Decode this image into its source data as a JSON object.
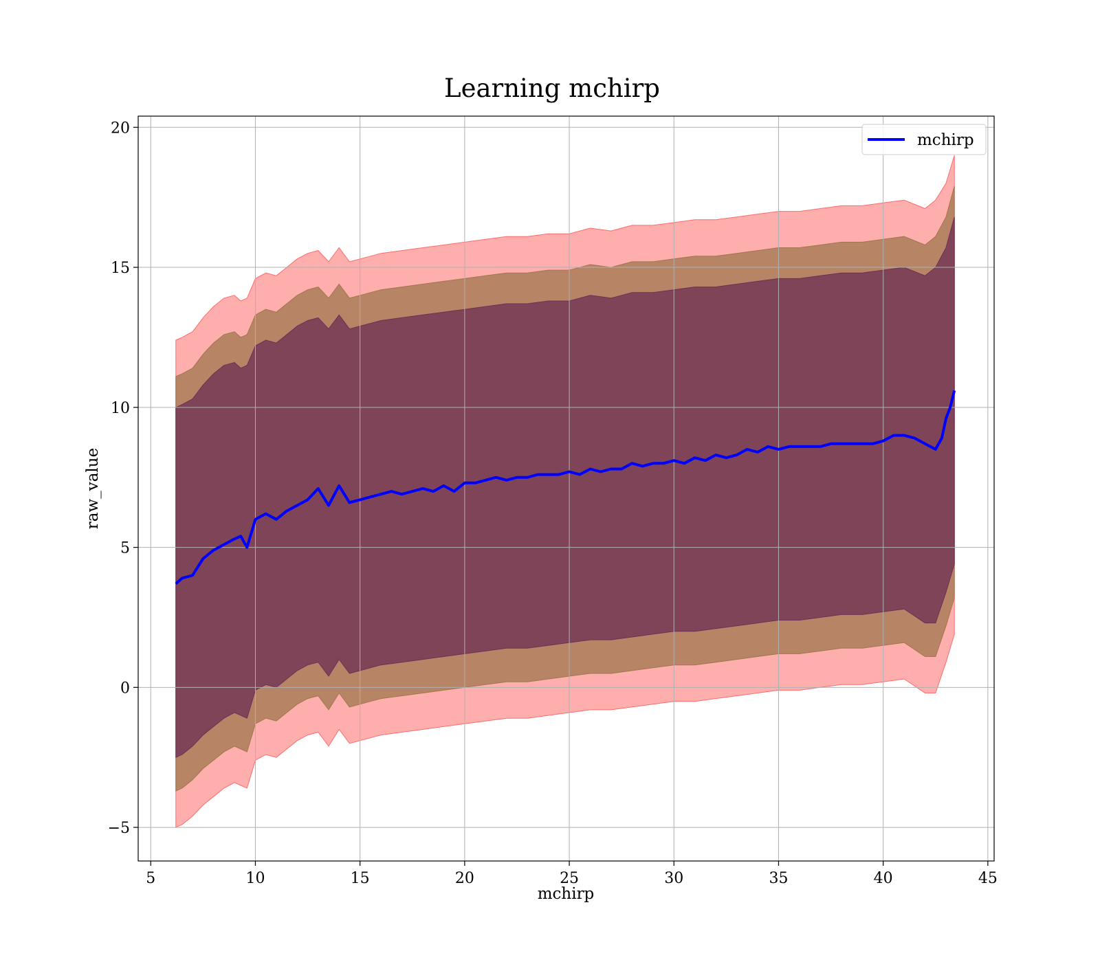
{
  "chart_data": {
    "type": "line",
    "title": "Learning mchirp",
    "xlabel": "mchirp",
    "ylabel": "raw_value",
    "xlim": [
      4.4,
      45.3
    ],
    "ylim": [
      -6.2,
      20.4
    ],
    "xticks": [
      5,
      10,
      15,
      20,
      25,
      30,
      35,
      40,
      45
    ],
    "xtick_labels": [
      "5",
      "10",
      "15",
      "20",
      "25",
      "30",
      "35",
      "40",
      "45"
    ],
    "yticks": [
      -5,
      0,
      5,
      10,
      15,
      20
    ],
    "ytick_labels": [
      "−5",
      "0",
      "5",
      "10",
      "15",
      "20"
    ],
    "grid": true,
    "legend": {
      "position": "top-right",
      "entries": [
        "mchirp"
      ]
    },
    "colors": {
      "line": "#0000ff",
      "band_outer": "#ff6b6b",
      "band_middle": "#a0764d",
      "band_inner": "#6e2f55",
      "grid": "#b0b0b0"
    },
    "series": [
      {
        "name": "mchirp",
        "x": [
          6.2,
          6.5,
          7.0,
          7.5,
          8.0,
          8.5,
          9.0,
          9.3,
          9.6,
          10.0,
          10.5,
          11.0,
          11.5,
          12.0,
          12.5,
          13.0,
          13.5,
          14.0,
          14.5,
          15.0,
          15.5,
          16.0,
          16.5,
          17.0,
          17.5,
          18.0,
          18.5,
          19.0,
          19.5,
          20.0,
          20.5,
          21.0,
          21.5,
          22.0,
          22.5,
          23.0,
          23.5,
          24.0,
          24.5,
          25.0,
          25.5,
          26.0,
          26.5,
          27.0,
          27.5,
          28.0,
          28.5,
          29.0,
          29.5,
          30.0,
          30.5,
          31.0,
          31.5,
          32.0,
          32.5,
          33.0,
          33.5,
          34.0,
          34.5,
          35.0,
          35.5,
          36.0,
          36.5,
          37.0,
          37.5,
          38.0,
          38.5,
          39.0,
          39.5,
          40.0,
          40.5,
          41.0,
          41.5,
          42.0,
          42.5,
          42.8,
          43.0,
          43.2,
          43.4
        ],
        "y": [
          3.7,
          3.9,
          4.0,
          4.6,
          4.9,
          5.1,
          5.3,
          5.4,
          5.0,
          6.0,
          6.2,
          6.0,
          6.3,
          6.5,
          6.7,
          7.1,
          6.5,
          7.2,
          6.6,
          6.7,
          6.8,
          6.9,
          7.0,
          6.9,
          7.0,
          7.1,
          7.0,
          7.2,
          7.0,
          7.3,
          7.3,
          7.4,
          7.5,
          7.4,
          7.5,
          7.5,
          7.6,
          7.6,
          7.6,
          7.7,
          7.6,
          7.8,
          7.7,
          7.8,
          7.8,
          8.0,
          7.9,
          8.0,
          8.0,
          8.1,
          8.0,
          8.2,
          8.1,
          8.3,
          8.2,
          8.3,
          8.5,
          8.4,
          8.6,
          8.5,
          8.6,
          8.6,
          8.6,
          8.6,
          8.7,
          8.7,
          8.7,
          8.7,
          8.7,
          8.8,
          9.0,
          9.0,
          8.9,
          8.7,
          8.5,
          8.9,
          9.6,
          10.0,
          10.6
        ]
      }
    ],
    "bands": [
      {
        "label": "outer",
        "x": [
          6.2,
          6.5,
          7.0,
          7.5,
          8.0,
          8.5,
          9.0,
          9.3,
          9.6,
          10.0,
          10.5,
          11.0,
          11.5,
          12.0,
          12.5,
          13.0,
          13.5,
          14.0,
          14.5,
          15.0,
          15.5,
          16.0,
          17.0,
          18.0,
          19.0,
          20.0,
          21.0,
          22.0,
          23.0,
          24.0,
          25.0,
          26.0,
          27.0,
          28.0,
          29.0,
          30.0,
          31.0,
          32.0,
          33.0,
          34.0,
          35.0,
          36.0,
          37.0,
          38.0,
          39.0,
          40.0,
          41.0,
          42.0,
          42.5,
          43.0,
          43.4
        ],
        "upper": [
          12.4,
          12.5,
          12.7,
          13.2,
          13.6,
          13.9,
          14.0,
          13.8,
          13.9,
          14.6,
          14.8,
          14.7,
          15.0,
          15.3,
          15.5,
          15.6,
          15.2,
          15.7,
          15.2,
          15.3,
          15.4,
          15.5,
          15.6,
          15.7,
          15.8,
          15.9,
          16.0,
          16.1,
          16.1,
          16.2,
          16.2,
          16.4,
          16.3,
          16.5,
          16.5,
          16.6,
          16.7,
          16.7,
          16.8,
          16.9,
          17.0,
          17.0,
          17.1,
          17.2,
          17.2,
          17.3,
          17.4,
          17.1,
          17.4,
          18.0,
          19.0
        ],
        "lower": [
          -5.0,
          -4.9,
          -4.6,
          -4.2,
          -3.9,
          -3.6,
          -3.4,
          -3.5,
          -3.6,
          -2.6,
          -2.4,
          -2.5,
          -2.2,
          -1.9,
          -1.7,
          -1.6,
          -2.1,
          -1.5,
          -2.0,
          -1.9,
          -1.8,
          -1.7,
          -1.6,
          -1.5,
          -1.4,
          -1.3,
          -1.2,
          -1.1,
          -1.1,
          -1.0,
          -0.9,
          -0.8,
          -0.8,
          -0.7,
          -0.6,
          -0.5,
          -0.5,
          -0.4,
          -0.3,
          -0.2,
          -0.1,
          -0.1,
          0.0,
          0.1,
          0.1,
          0.2,
          0.3,
          -0.2,
          -0.2,
          0.9,
          1.9
        ]
      },
      {
        "label": "middle",
        "x": [
          6.2,
          6.5,
          7.0,
          7.5,
          8.0,
          8.5,
          9.0,
          9.3,
          9.6,
          10.0,
          10.5,
          11.0,
          11.5,
          12.0,
          12.5,
          13.0,
          13.5,
          14.0,
          14.5,
          15.0,
          15.5,
          16.0,
          17.0,
          18.0,
          19.0,
          20.0,
          21.0,
          22.0,
          23.0,
          24.0,
          25.0,
          26.0,
          27.0,
          28.0,
          29.0,
          30.0,
          31.0,
          32.0,
          33.0,
          34.0,
          35.0,
          36.0,
          37.0,
          38.0,
          39.0,
          40.0,
          41.0,
          42.0,
          42.5,
          43.0,
          43.4
        ],
        "upper": [
          11.1,
          11.2,
          11.4,
          11.9,
          12.3,
          12.6,
          12.7,
          12.5,
          12.6,
          13.3,
          13.5,
          13.4,
          13.7,
          14.0,
          14.2,
          14.3,
          13.9,
          14.4,
          13.9,
          14.0,
          14.1,
          14.2,
          14.3,
          14.4,
          14.5,
          14.6,
          14.7,
          14.8,
          14.8,
          14.9,
          14.9,
          15.1,
          15.0,
          15.2,
          15.2,
          15.3,
          15.4,
          15.4,
          15.5,
          15.6,
          15.7,
          15.7,
          15.8,
          15.9,
          15.9,
          16.0,
          16.1,
          15.8,
          16.1,
          16.8,
          17.9
        ],
        "lower": [
          -3.7,
          -3.6,
          -3.3,
          -2.9,
          -2.6,
          -2.3,
          -2.1,
          -2.2,
          -2.3,
          -1.3,
          -1.1,
          -1.2,
          -0.9,
          -0.6,
          -0.4,
          -0.3,
          -0.8,
          -0.2,
          -0.7,
          -0.6,
          -0.5,
          -0.4,
          -0.3,
          -0.2,
          -0.1,
          0.0,
          0.1,
          0.2,
          0.2,
          0.3,
          0.4,
          0.5,
          0.5,
          0.6,
          0.7,
          0.8,
          0.8,
          0.9,
          1.0,
          1.1,
          1.2,
          1.2,
          1.3,
          1.4,
          1.4,
          1.5,
          1.6,
          1.1,
          1.1,
          2.2,
          3.2
        ]
      },
      {
        "label": "inner",
        "x": [
          6.2,
          6.5,
          7.0,
          7.5,
          8.0,
          8.5,
          9.0,
          9.3,
          9.6,
          10.0,
          10.5,
          11.0,
          11.5,
          12.0,
          12.5,
          13.0,
          13.5,
          14.0,
          14.5,
          15.0,
          15.5,
          16.0,
          17.0,
          18.0,
          19.0,
          20.0,
          21.0,
          22.0,
          23.0,
          24.0,
          25.0,
          26.0,
          27.0,
          28.0,
          29.0,
          30.0,
          31.0,
          32.0,
          33.0,
          34.0,
          35.0,
          36.0,
          37.0,
          38.0,
          39.0,
          40.0,
          41.0,
          42.0,
          42.5,
          43.0,
          43.4
        ],
        "upper": [
          10.0,
          10.1,
          10.3,
          10.8,
          11.2,
          11.5,
          11.6,
          11.4,
          11.5,
          12.2,
          12.4,
          12.3,
          12.6,
          12.9,
          13.1,
          13.2,
          12.8,
          13.3,
          12.8,
          12.9,
          13.0,
          13.1,
          13.2,
          13.3,
          13.4,
          13.5,
          13.6,
          13.7,
          13.7,
          13.8,
          13.8,
          14.0,
          13.9,
          14.1,
          14.1,
          14.2,
          14.3,
          14.3,
          14.4,
          14.5,
          14.6,
          14.6,
          14.7,
          14.8,
          14.8,
          14.9,
          15.0,
          14.7,
          15.0,
          15.7,
          16.8
        ],
        "lower": [
          -2.5,
          -2.4,
          -2.1,
          -1.7,
          -1.4,
          -1.1,
          -0.9,
          -1.0,
          -1.1,
          -0.1,
          0.1,
          0.0,
          0.3,
          0.6,
          0.8,
          0.9,
          0.4,
          1.0,
          0.5,
          0.6,
          0.7,
          0.8,
          0.9,
          1.0,
          1.1,
          1.2,
          1.3,
          1.4,
          1.4,
          1.5,
          1.6,
          1.7,
          1.7,
          1.8,
          1.9,
          2.0,
          2.0,
          2.1,
          2.2,
          2.3,
          2.4,
          2.4,
          2.5,
          2.6,
          2.6,
          2.7,
          2.8,
          2.3,
          2.3,
          3.4,
          4.4
        ]
      }
    ]
  }
}
